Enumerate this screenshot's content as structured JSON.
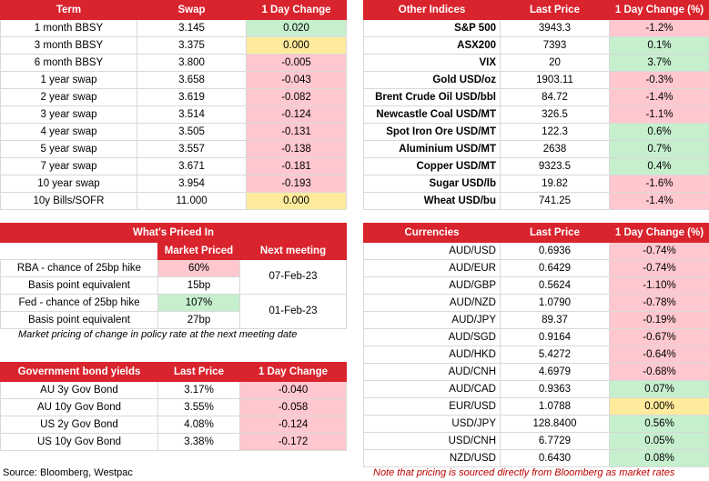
{
  "term_table": {
    "headers": [
      "Term",
      "Swap",
      "1 Day Change"
    ],
    "rows": [
      {
        "term": "1 month BBSY",
        "swap": "3.145",
        "change": "0.020",
        "tone": "g"
      },
      {
        "term": "3 month BBSY",
        "swap": "3.375",
        "change": "0.000",
        "tone": "y"
      },
      {
        "term": "6 month BBSY",
        "swap": "3.800",
        "change": "-0.005",
        "tone": "rd"
      },
      {
        "term": "1 year swap",
        "swap": "3.658",
        "change": "-0.043",
        "tone": "rd"
      },
      {
        "term": "2 year swap",
        "swap": "3.619",
        "change": "-0.082",
        "tone": "rd"
      },
      {
        "term": "3 year swap",
        "swap": "3.514",
        "change": "-0.124",
        "tone": "rd"
      },
      {
        "term": "4 year swap",
        "swap": "3.505",
        "change": "-0.131",
        "tone": "rd"
      },
      {
        "term": "5 year swap",
        "swap": "3.557",
        "change": "-0.138",
        "tone": "rd"
      },
      {
        "term": "7 year swap",
        "swap": "3.671",
        "change": "-0.181",
        "tone": "rd"
      },
      {
        "term": "10 year swap",
        "swap": "3.954",
        "change": "-0.193",
        "tone": "rd"
      },
      {
        "term": "10y Bills/SOFR",
        "swap": "11.000",
        "change": "0.000",
        "tone": "y"
      }
    ]
  },
  "indices_table": {
    "headers": [
      "Other Indices",
      "Last Price",
      "1 Day Change (%)"
    ],
    "rows": [
      {
        "name": "S&P 500",
        "price": "3943.3",
        "change": "-1.2%",
        "tone": "rd"
      },
      {
        "name": "ASX200",
        "price": "7393",
        "change": "0.1%",
        "tone": "g"
      },
      {
        "name": "VIX",
        "price": "20",
        "change": "3.7%",
        "tone": "g"
      },
      {
        "name": "Gold USD/oz",
        "price": "1903.11",
        "change": "-0.3%",
        "tone": "rd"
      },
      {
        "name": "Brent Crude Oil USD/bbl",
        "price": "84.72",
        "change": "-1.4%",
        "tone": "rd"
      },
      {
        "name": "Newcastle Coal USD/MT",
        "price": "326.5",
        "change": "-1.1%",
        "tone": "rd"
      },
      {
        "name": "Spot Iron Ore USD/MT",
        "price": "122.3",
        "change": "0.6%",
        "tone": "g"
      },
      {
        "name": "Aluminium USD/MT",
        "price": "2638",
        "change": "0.7%",
        "tone": "g"
      },
      {
        "name": "Copper USD/MT",
        "price": "9323.5",
        "change": "0.4%",
        "tone": "g"
      },
      {
        "name": "Sugar USD/lb",
        "price": "19.82",
        "change": "-1.6%",
        "tone": "rd"
      },
      {
        "name": "Wheat USD/bu",
        "price": "741.25",
        "change": "-1.4%",
        "tone": "rd"
      }
    ]
  },
  "priced_in": {
    "title": "What's Priced In",
    "col_market": "Market Priced",
    "col_next": "Next meeting",
    "rba_label": "RBA - chance of 25bp hike",
    "rba_value": "60%",
    "rba_bp_label": "Basis point equivalent",
    "rba_bp_value": "15bp",
    "rba_date": "07-Feb-23",
    "fed_label": "Fed - chance of 25bp hike",
    "fed_value": "107%",
    "fed_bp_label": "Basis point equivalent",
    "fed_bp_value": "27bp",
    "fed_date": "01-Feb-23",
    "note": "Market pricing of change in policy rate at the next meeting date"
  },
  "bonds_table": {
    "headers": [
      "Government bond yields",
      "Last Price",
      "1 Day Change"
    ],
    "rows": [
      {
        "name": "AU 3y Gov Bond",
        "price": "3.17%",
        "change": "-0.040",
        "tone": "rd"
      },
      {
        "name": "AU 10y Gov Bond",
        "price": "3.55%",
        "change": "-0.058",
        "tone": "rd"
      },
      {
        "name": "US 2y Gov Bond",
        "price": "4.08%",
        "change": "-0.124",
        "tone": "rd"
      },
      {
        "name": "US 10y Gov Bond",
        "price": "3.38%",
        "change": "-0.172",
        "tone": "rd"
      }
    ]
  },
  "currencies_table": {
    "headers": [
      "Currencies",
      "Last Price",
      "1 Day Change (%)"
    ],
    "rows": [
      {
        "name": "AUD/USD",
        "price": "0.6936",
        "change": "-0.74%",
        "tone": "rd"
      },
      {
        "name": "AUD/EUR",
        "price": "0.6429",
        "change": "-0.74%",
        "tone": "rd"
      },
      {
        "name": "AUD/GBP",
        "price": "0.5624",
        "change": "-1.10%",
        "tone": "rd"
      },
      {
        "name": "AUD/NZD",
        "price": "1.0790",
        "change": "-0.78%",
        "tone": "rd"
      },
      {
        "name": "AUD/JPY",
        "price": "89.37",
        "change": "-0.19%",
        "tone": "rd"
      },
      {
        "name": "AUD/SGD",
        "price": "0.9164",
        "change": "-0.67%",
        "tone": "rd"
      },
      {
        "name": "AUD/HKD",
        "price": "5.4272",
        "change": "-0.64%",
        "tone": "rd"
      },
      {
        "name": "AUD/CNH",
        "price": "4.6979",
        "change": "-0.68%",
        "tone": "rd"
      },
      {
        "name": "AUD/CAD",
        "price": "0.9363",
        "change": "0.07%",
        "tone": "g"
      },
      {
        "name": "EUR/USD",
        "price": "1.0788",
        "change": "0.00%",
        "tone": "y"
      },
      {
        "name": "USD/JPY",
        "price": "128.8400",
        "change": "0.56%",
        "tone": "g"
      },
      {
        "name": "USD/CNH",
        "price": "6.7729",
        "change": "0.05%",
        "tone": "g"
      },
      {
        "name": "NZD/USD",
        "price": "0.6430",
        "change": "0.08%",
        "tone": "g"
      }
    ]
  },
  "footer": {
    "source": "Source: Bloomberg, Westpac",
    "disclaimer": "Note that pricing is sourced directly from Bloomberg as market rates"
  }
}
